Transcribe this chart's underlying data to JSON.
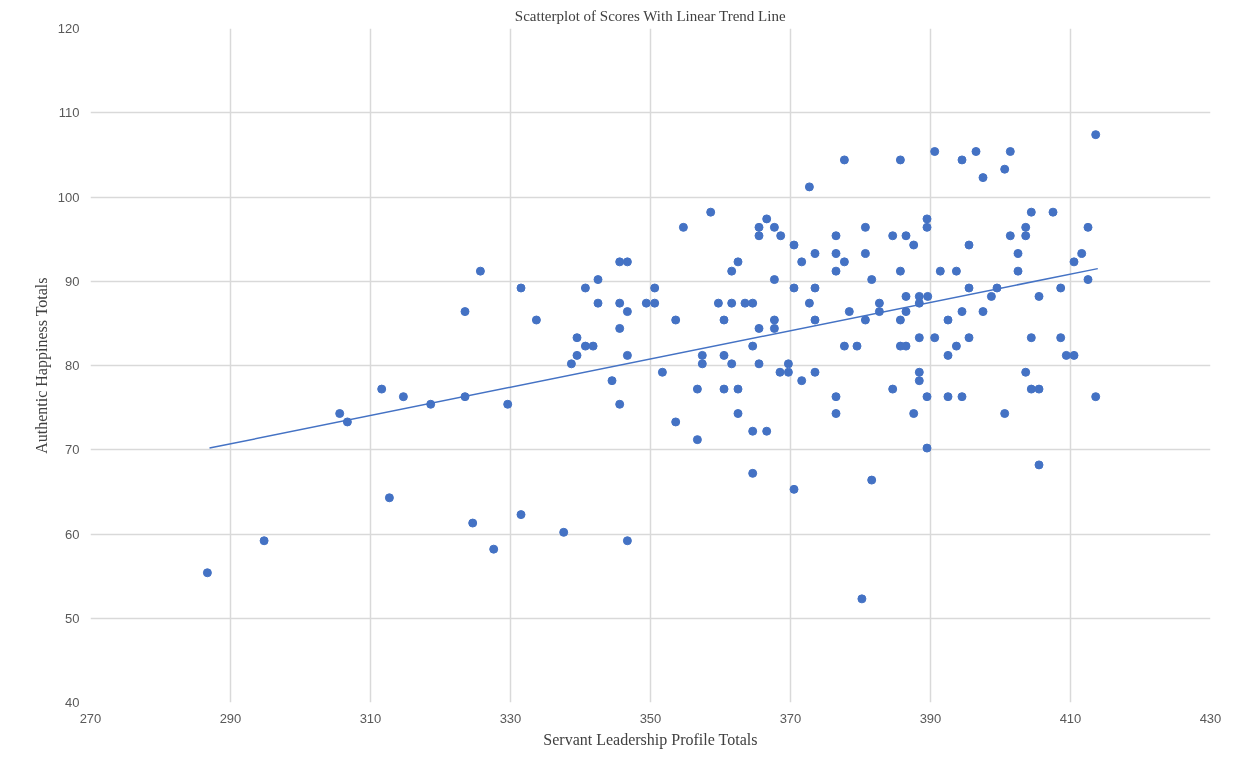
{
  "chart_data": {
    "type": "scatter",
    "title": "Scatterplot of Scores With Linear Trend Line",
    "xlabel": "Servant Leadership Profile Totals",
    "ylabel": "Authentic Happiness Totals",
    "xlim": [
      270,
      430
    ],
    "xticks": [
      270,
      290,
      310,
      330,
      350,
      370,
      390,
      410,
      430
    ],
    "ylim": [
      40,
      120
    ],
    "yticks": [
      40,
      50,
      60,
      70,
      80,
      90,
      100,
      110,
      120
    ],
    "grid": true,
    "series": [
      {
        "color": "#4472c4",
        "marker": "circle",
        "x": [
          286.7,
          294.8,
          305.6,
          306.7,
          311.6,
          312.7,
          314.7,
          318.6,
          323.5,
          323.5,
          324.6,
          325.7,
          327.6,
          329.6,
          331.5,
          331.5,
          333.7,
          337.6,
          338.7,
          339.5,
          339.5,
          340.7,
          341.8,
          340.7,
          342.5,
          342.5,
          344.5,
          345.6,
          346.7,
          345.6,
          346.7,
          345.6,
          346.7,
          345.6,
          346.7,
          349.4,
          350.6,
          350.6,
          351.7,
          353.6,
          353.6,
          354.7,
          356.7,
          356.7,
          357.4,
          357.4,
          358.6,
          359.7,
          360.5,
          360.5,
          360.5,
          361.6,
          362.5,
          361.6,
          361.6,
          362.5,
          362.5,
          363.5,
          364.6,
          364.6,
          364.6,
          364.6,
          365.5,
          365.5,
          365.5,
          365.5,
          366.6,
          366.6,
          367.7,
          368.6,
          367.7,
          367.7,
          367.7,
          368.5,
          369.7,
          369.7,
          370.5,
          370.5,
          370.5,
          371.6,
          371.6,
          372.7,
          372.7,
          373.5,
          373.5,
          373.5,
          373.5,
          376.5,
          376.5,
          377.7,
          376.5,
          377.7,
          378.4,
          377.7,
          376.5,
          376.5,
          385.7,
          390.6,
          394.5,
          396.5,
          397.5,
          400.6,
          401.4,
          413.6,
          380.7,
          380.7,
          381.6,
          384.6,
          386.5,
          387.6,
          389.5,
          389.5,
          385.7,
          391.4,
          393.7,
          395.5,
          401.4,
          403.6,
          403.6,
          404.4,
          407.5,
          402.5,
          402.5,
          412.5,
          411.6,
          410.5,
          412.5,
          379.5,
          382.7,
          382.7,
          380.7,
          385.7,
          386.5,
          386.5,
          388.4,
          388.4,
          389.6,
          392.5,
          394.5,
          395.5,
          397.5,
          398.7,
          399.5,
          405.5,
          408.6,
          385.7,
          386.5,
          388.4,
          390.6,
          392.5,
          393.7,
          395.5,
          404.4,
          408.6,
          409.4,
          410.5,
          384.6,
          388.4,
          388.4,
          389.5,
          392.5,
          394.5,
          387.6,
          400.6,
          403.6,
          404.4,
          405.5,
          413.6,
          389.5,
          381.6,
          405.5,
          380.2
        ],
        "values": [
          55.4,
          59.2,
          74.3,
          73.3,
          77.2,
          64.3,
          76.3,
          75.4,
          86.4,
          76.3,
          61.3,
          91.2,
          58.2,
          75.4,
          89.2,
          62.3,
          85.4,
          60.2,
          80.2,
          81.2,
          83.3,
          82.3,
          82.3,
          89.2,
          90.2,
          87.4,
          78.2,
          92.3,
          92.3,
          87.4,
          86.4,
          84.4,
          81.2,
          75.4,
          59.2,
          87.4,
          87.4,
          89.2,
          79.2,
          85.4,
          73.3,
          96.4,
          77.2,
          71.2,
          81.2,
          80.2,
          98.2,
          87.4,
          85.4,
          81.2,
          77.2,
          91.2,
          92.3,
          87.4,
          80.2,
          77.2,
          74.3,
          87.4,
          87.4,
          82.3,
          72.2,
          67.2,
          84.4,
          80.2,
          96.4,
          95.4,
          97.4,
          72.2,
          96.4,
          95.4,
          90.2,
          85.4,
          84.4,
          79.2,
          80.2,
          79.2,
          94.3,
          89.2,
          65.3,
          92.3,
          78.2,
          101.2,
          87.4,
          93.3,
          89.2,
          85.4,
          79.2,
          95.4,
          93.3,
          92.3,
          91.2,
          104.4,
          86.4,
          82.3,
          76.3,
          74.3,
          104.4,
          105.4,
          104.4,
          105.4,
          102.3,
          103.3,
          105.4,
          107.4,
          96.4,
          93.3,
          90.2,
          95.4,
          95.4,
          94.3,
          97.4,
          96.4,
          91.2,
          91.2,
          91.2,
          94.3,
          95.4,
          96.4,
          95.4,
          98.2,
          98.2,
          93.3,
          91.2,
          96.4,
          93.3,
          92.3,
          90.2,
          82.3,
          87.4,
          86.4,
          85.4,
          85.4,
          88.2,
          86.4,
          88.2,
          87.4,
          88.2,
          85.4,
          86.4,
          89.2,
          86.4,
          88.2,
          89.2,
          88.2,
          89.2,
          82.3,
          82.3,
          83.3,
          83.3,
          81.2,
          82.3,
          83.3,
          83.3,
          83.3,
          81.2,
          81.2,
          77.2,
          79.2,
          78.2,
          76.3,
          76.3,
          76.3,
          74.3,
          74.3,
          79.2,
          77.2,
          77.2,
          76.3,
          70.2,
          66.4,
          68.2,
          52.3
        ]
      },
      {
        "type": "line",
        "color": "#4472c4",
        "x": [
          287.0,
          413.9
        ],
        "values": [
          70.2,
          91.5
        ]
      }
    ]
  }
}
